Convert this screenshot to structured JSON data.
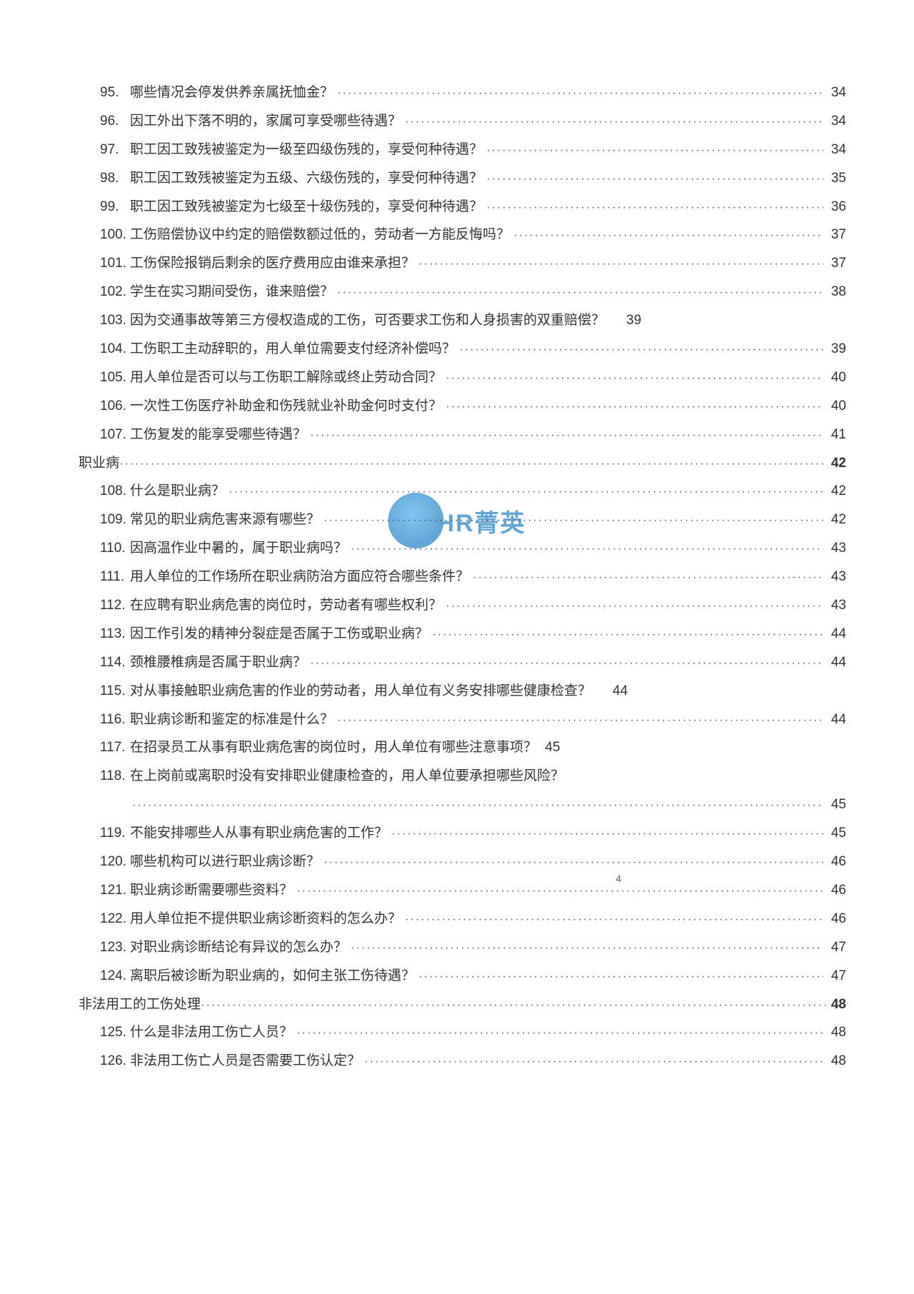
{
  "watermark": {
    "text": "HR菁英"
  },
  "footer_page": "4",
  "leader_dots": "······················································································································································",
  "entries": [
    {
      "kind": "numbered",
      "num": "95.",
      "title": "哪些情况会停发供养亲属抚恤金？",
      "page": "34"
    },
    {
      "kind": "numbered",
      "num": "96.",
      "title": "因工外出下落不明的，家属可享受哪些待遇？",
      "page": "34"
    },
    {
      "kind": "numbered",
      "num": "97.",
      "title": "职工因工致残被鉴定为一级至四级伤残的，享受何种待遇？",
      "page": "34"
    },
    {
      "kind": "numbered",
      "num": "98.",
      "title": "职工因工致残被鉴定为五级、六级伤残的，享受何种待遇？",
      "page": "35"
    },
    {
      "kind": "numbered",
      "num": "99.",
      "title": "职工因工致残被鉴定为七级至十级伤残的，享受何种待遇？",
      "page": "36"
    },
    {
      "kind": "numbered",
      "num": "100.",
      "title": "工伤赔偿协议中约定的赔偿数额过低的，劳动者一方能反悔吗？",
      "page": "37"
    },
    {
      "kind": "numbered",
      "num": "101.",
      "title": "工伤保险报销后剩余的医疗费用应由谁来承担？",
      "page": "37"
    },
    {
      "kind": "numbered",
      "num": "102.",
      "title": "学生在实习期间受伤，谁来赔偿？",
      "page": "38"
    },
    {
      "kind": "numbered-wide",
      "num": "103.",
      "title": "因为交通事故等第三方侵权造成的工伤，可否要求工伤和人身损害的双重赔偿？",
      "page": "39"
    },
    {
      "kind": "numbered",
      "num": "104.",
      "title": "工伤职工主动辞职的，用人单位需要支付经济补偿吗？",
      "page": "39"
    },
    {
      "kind": "numbered",
      "num": "105.",
      "title": "用人单位是否可以与工伤职工解除或终止劳动合同？",
      "page": "40"
    },
    {
      "kind": "numbered",
      "num": "106.",
      "title": "一次性工伤医疗补助金和伤残就业补助金何时支付？",
      "page": "40"
    },
    {
      "kind": "numbered",
      "num": "107.",
      "title": "工伤复发的能享受哪些待遇？",
      "page": "41"
    },
    {
      "kind": "section",
      "title": "职业病",
      "page": "42"
    },
    {
      "kind": "numbered",
      "num": "108.",
      "title": "什么是职业病？",
      "page": "42"
    },
    {
      "kind": "numbered",
      "num": "109.",
      "title": "常见的职业病危害来源有哪些？",
      "page": "42"
    },
    {
      "kind": "numbered",
      "num": "110.",
      "title": "因高温作业中暑的，属于职业病吗？",
      "page": "43"
    },
    {
      "kind": "numbered",
      "num": "111.",
      "title": "用人单位的工作场所在职业病防治方面应符合哪些条件？",
      "page": "43"
    },
    {
      "kind": "numbered",
      "num": "112.",
      "title": "在应聘有职业病危害的岗位时，劳动者有哪些权利？",
      "page": "43"
    },
    {
      "kind": "numbered",
      "num": "113.",
      "title": "因工作引发的精神分裂症是否属于工伤或职业病？",
      "page": "44"
    },
    {
      "kind": "numbered",
      "num": "114.",
      "title": "颈椎腰椎病是否属于职业病？",
      "page": "44"
    },
    {
      "kind": "numbered-wide",
      "num": "115.",
      "title": "对从事接触职业病危害的作业的劳动者，用人单位有义务安排哪些健康检查？",
      "page": "44"
    },
    {
      "kind": "numbered",
      "num": "116.",
      "title": "职业病诊断和鉴定的标准是什么？",
      "page": "44"
    },
    {
      "kind": "numbered-nopage",
      "num": "117.",
      "title": "在招录员工从事有职业病危害的岗位时，用人单位有哪些注意事项？",
      "page": "45"
    },
    {
      "kind": "numbered-wrap",
      "num": "118.",
      "title": "在上岗前或离职时没有安排职业健康检查的，用人单位要承担哪些风险？",
      "page": "45"
    },
    {
      "kind": "numbered",
      "num": "119.",
      "title": "不能安排哪些人从事有职业病危害的工作？",
      "page": "45"
    },
    {
      "kind": "numbered",
      "num": "120.",
      "title": "哪些机构可以进行职业病诊断？",
      "page": "46"
    },
    {
      "kind": "numbered",
      "num": "121.",
      "title": "职业病诊断需要哪些资料？",
      "page": "46"
    },
    {
      "kind": "numbered",
      "num": "122.",
      "title": "用人单位拒不提供职业病诊断资料的怎么办？",
      "page": "46"
    },
    {
      "kind": "numbered",
      "num": "123.",
      "title": "对职业病诊断结论有异议的怎么办？",
      "page": "47"
    },
    {
      "kind": "numbered",
      "num": "124.",
      "title": "离职后被诊断为职业病的，如何主张工伤待遇？",
      "page": "47"
    },
    {
      "kind": "section",
      "title": "非法用工的工伤处理",
      "page": "48"
    },
    {
      "kind": "numbered",
      "num": "125.",
      "title": "什么是非法用工伤亡人员？",
      "page": "48"
    },
    {
      "kind": "numbered",
      "num": "126.",
      "title": "非法用工伤亡人员是否需要工伤认定？",
      "page": "48"
    }
  ]
}
